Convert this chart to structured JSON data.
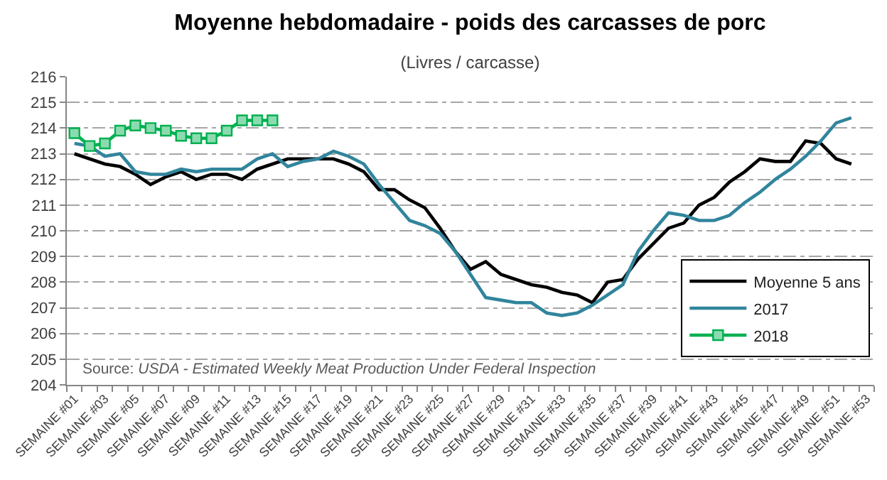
{
  "chart_data": {
    "type": "line",
    "title": "Moyenne hebdomadaire - poids des carcasses de porc",
    "subtitle": "(Livres / carcasse)",
    "categories": [
      "SEMAINE #01",
      null,
      "SEMAINE #03",
      null,
      "SEMAINE #05",
      null,
      "SEMAINE #07",
      null,
      "SEMAINE #09",
      null,
      "SEMAINE #11",
      null,
      "SEMAINE #13",
      null,
      "SEMAINE #15",
      null,
      "SEMAINE #17",
      null,
      "SEMAINE #19",
      null,
      "SEMAINE #21",
      null,
      "SEMAINE #23",
      null,
      "SEMAINE #25",
      null,
      "SEMAINE #27",
      null,
      "SEMAINE #29",
      null,
      "SEMAINE #31",
      null,
      "SEMAINE #33",
      null,
      "SEMAINE #35",
      null,
      "SEMAINE #37",
      null,
      "SEMAINE #39",
      null,
      "SEMAINE #41",
      null,
      "SEMAINE #43",
      null,
      "SEMAINE #45",
      null,
      "SEMAINE #47",
      null,
      "SEMAINE #49",
      null,
      "SEMAINE #51",
      null,
      "SEMAINE #53"
    ],
    "series": [
      {
        "name": "Moyenne 5 ans",
        "color": "#000000",
        "values": [
          213.0,
          212.8,
          212.6,
          212.5,
          212.2,
          211.8,
          212.1,
          212.3,
          212.0,
          212.2,
          212.2,
          212.0,
          212.4,
          212.6,
          212.8,
          212.8,
          212.8,
          212.8,
          212.6,
          212.3,
          211.6,
          211.6,
          211.2,
          210.9,
          210.1,
          209.2,
          208.5,
          208.8,
          208.3,
          208.1,
          207.9,
          207.8,
          207.6,
          207.5,
          207.2,
          208.0,
          208.1,
          208.9,
          209.5,
          210.1,
          210.3,
          211.0,
          211.3,
          211.9,
          212.3,
          212.8,
          212.7,
          212.7,
          213.5,
          213.4,
          212.8,
          212.6,
          null
        ]
      },
      {
        "name": "2017",
        "color": "#31859c",
        "values": [
          213.4,
          213.3,
          212.9,
          213.0,
          212.3,
          212.2,
          212.2,
          212.4,
          212.3,
          212.4,
          212.4,
          212.4,
          212.8,
          213.0,
          212.5,
          212.7,
          212.8,
          213.1,
          212.9,
          212.6,
          211.8,
          211.1,
          210.4,
          210.2,
          209.9,
          209.2,
          208.3,
          207.4,
          207.3,
          207.2,
          207.2,
          206.8,
          206.7,
          206.8,
          207.1,
          207.5,
          207.9,
          209.2,
          210.0,
          210.7,
          210.6,
          210.4,
          210.4,
          210.6,
          211.1,
          211.5,
          212.0,
          212.4,
          212.9,
          213.5,
          214.2,
          214.4,
          null
        ]
      },
      {
        "name": "2018",
        "color": "#00b050",
        "marker": "square",
        "values": [
          213.8,
          213.3,
          213.4,
          213.9,
          214.1,
          214.0,
          213.9,
          213.7,
          213.6,
          213.6,
          213.9,
          214.3,
          214.3,
          214.3,
          null,
          null,
          null,
          null,
          null,
          null,
          null,
          null,
          null,
          null,
          null,
          null,
          null,
          null,
          null,
          null,
          null,
          null,
          null,
          null,
          null,
          null,
          null,
          null,
          null,
          null,
          null,
          null,
          null,
          null,
          null,
          null,
          null,
          null,
          null,
          null,
          null,
          null,
          null
        ]
      }
    ],
    "ylim": [
      204,
      216
    ],
    "yticks": [
      204,
      205,
      206,
      207,
      208,
      209,
      210,
      211,
      212,
      213,
      214,
      215,
      216
    ],
    "grid": "y",
    "legend": "bottom right",
    "marker": "none",
    "line_style": "solid",
    "annotations": [
      "Source: USDA - Estimated Weekly Meat Production Under Federal Inspection"
    ]
  }
}
